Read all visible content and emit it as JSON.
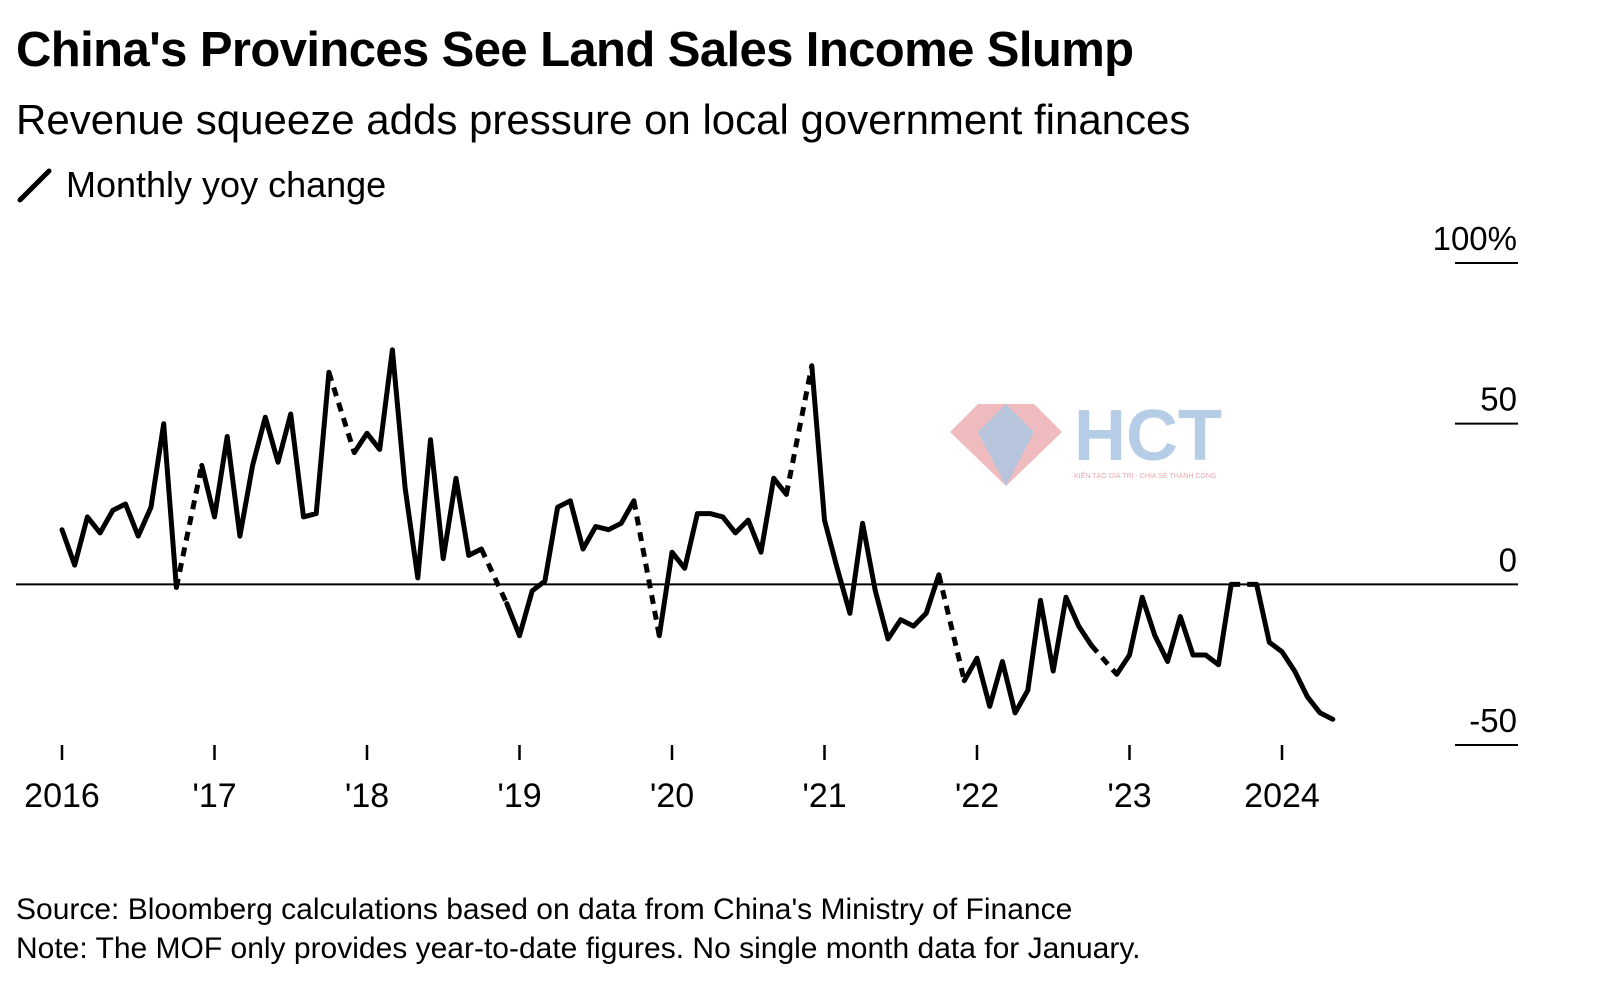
{
  "title": "China's Provinces See Land Sales Income Slump",
  "subtitle": "Revenue squeeze adds pressure on local government finances",
  "legend": {
    "label": "Monthly yoy change",
    "icon": "diagonal-line-icon"
  },
  "watermark": {
    "brand": "HCT",
    "tagline": "KIẾN TẠO GIÁ TRỊ - CHIA SẺ THÀNH CÔNG"
  },
  "source": "Source: Bloomberg calculations based on data from China's Ministry of Finance",
  "note": "Note: The MOF only provides year-to-date figures. No single month data for January.",
  "colors": {
    "line": "#000000",
    "zero_line": "#000000",
    "watermark_red": "#e8a0a6",
    "watermark_blue": "#9fbfe0"
  },
  "chart_data": {
    "type": "line",
    "title": "China's Provinces See Land Sales Income Slump",
    "subtitle": "Revenue squeeze adds pressure on local government finances",
    "xlabel": "",
    "ylabel": "Monthly yoy change",
    "ylim": [
      -50,
      100
    ],
    "xlim": [
      2016.0,
      2024.9
    ],
    "y_ticks": [
      {
        "value": 100,
        "label": "100%"
      },
      {
        "value": 50,
        "label": "50"
      },
      {
        "value": 0,
        "label": "0"
      },
      {
        "value": -50,
        "label": "-50"
      }
    ],
    "x_ticks": [
      {
        "value": 2016,
        "label": "2016"
      },
      {
        "value": 2017,
        "label": "'17"
      },
      {
        "value": 2018,
        "label": "'18"
      },
      {
        "value": 2019,
        "label": "'19"
      },
      {
        "value": 2020,
        "label": "'20"
      },
      {
        "value": 2021,
        "label": "'21"
      },
      {
        "value": 2022,
        "label": "'22"
      },
      {
        "value": 2023,
        "label": "'23"
      },
      {
        "value": 2024,
        "label": "2024"
      }
    ],
    "dashed_connects_missing_january": true,
    "series": [
      {
        "name": "Monthly yoy change",
        "x_start": 2016.0,
        "x_step": 0.0833333,
        "values": [
          17,
          6,
          21,
          16,
          23,
          25,
          15,
          24,
          50,
          -1,
          null,
          37,
          21,
          46,
          15,
          37,
          52,
          38,
          53,
          21,
          22,
          66,
          null,
          41,
          47,
          42,
          73,
          30,
          2,
          45,
          8,
          33,
          9,
          11,
          null,
          -6,
          -16,
          -2,
          1,
          24,
          26,
          11,
          18,
          17,
          19,
          26,
          null,
          -16,
          10,
          5,
          22,
          22,
          21,
          16,
          20,
          10,
          33,
          28,
          null,
          68,
          20,
          5,
          -9,
          19,
          -2,
          -17,
          -11,
          -13,
          -9,
          3,
          null,
          -30,
          -23,
          -38,
          -24,
          -40,
          -33,
          -5,
          -27,
          -4,
          -13,
          -19,
          null,
          -28,
          -22,
          -4,
          -16,
          -24,
          -10,
          -22,
          -22,
          -25,
          0,
          null,
          0,
          -18,
          -21,
          -27,
          -35,
          -40,
          -42
        ]
      }
    ]
  }
}
